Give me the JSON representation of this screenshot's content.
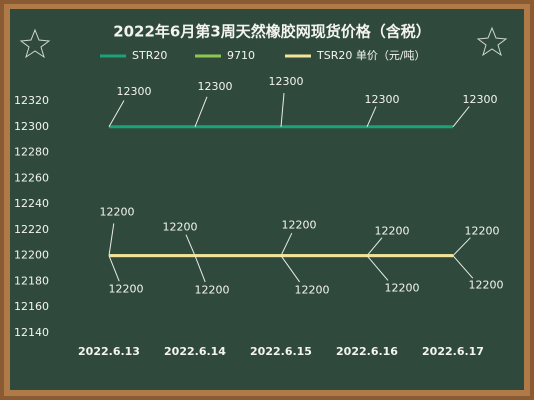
{
  "chart_data": {
    "type": "line",
    "title": "2022年6月第3周天然橡胶网现货价格（含税）",
    "categories": [
      "2022.6.13",
      "2022.6.14",
      "2022.6.15",
      "2022.6.16",
      "2022.6.17"
    ],
    "series": [
      {
        "name": "STR20",
        "color": "#1aa37a",
        "values": [
          12300,
          12300,
          12300,
          12300,
          12300
        ]
      },
      {
        "name": "9710",
        "color": "#8cc850",
        "values": [
          12200,
          12200,
          12200,
          12200,
          12200
        ]
      },
      {
        "name": "TSR20 单价（元/吨）",
        "color": "#f3e39a",
        "values": [
          12200,
          12200,
          12200,
          12200,
          12200
        ]
      }
    ],
    "ylim": [
      12140,
      12320
    ],
    "yticks": [
      12140,
      12160,
      12180,
      12200,
      12220,
      12240,
      12260,
      12280,
      12300,
      12320
    ],
    "grid": false
  }
}
